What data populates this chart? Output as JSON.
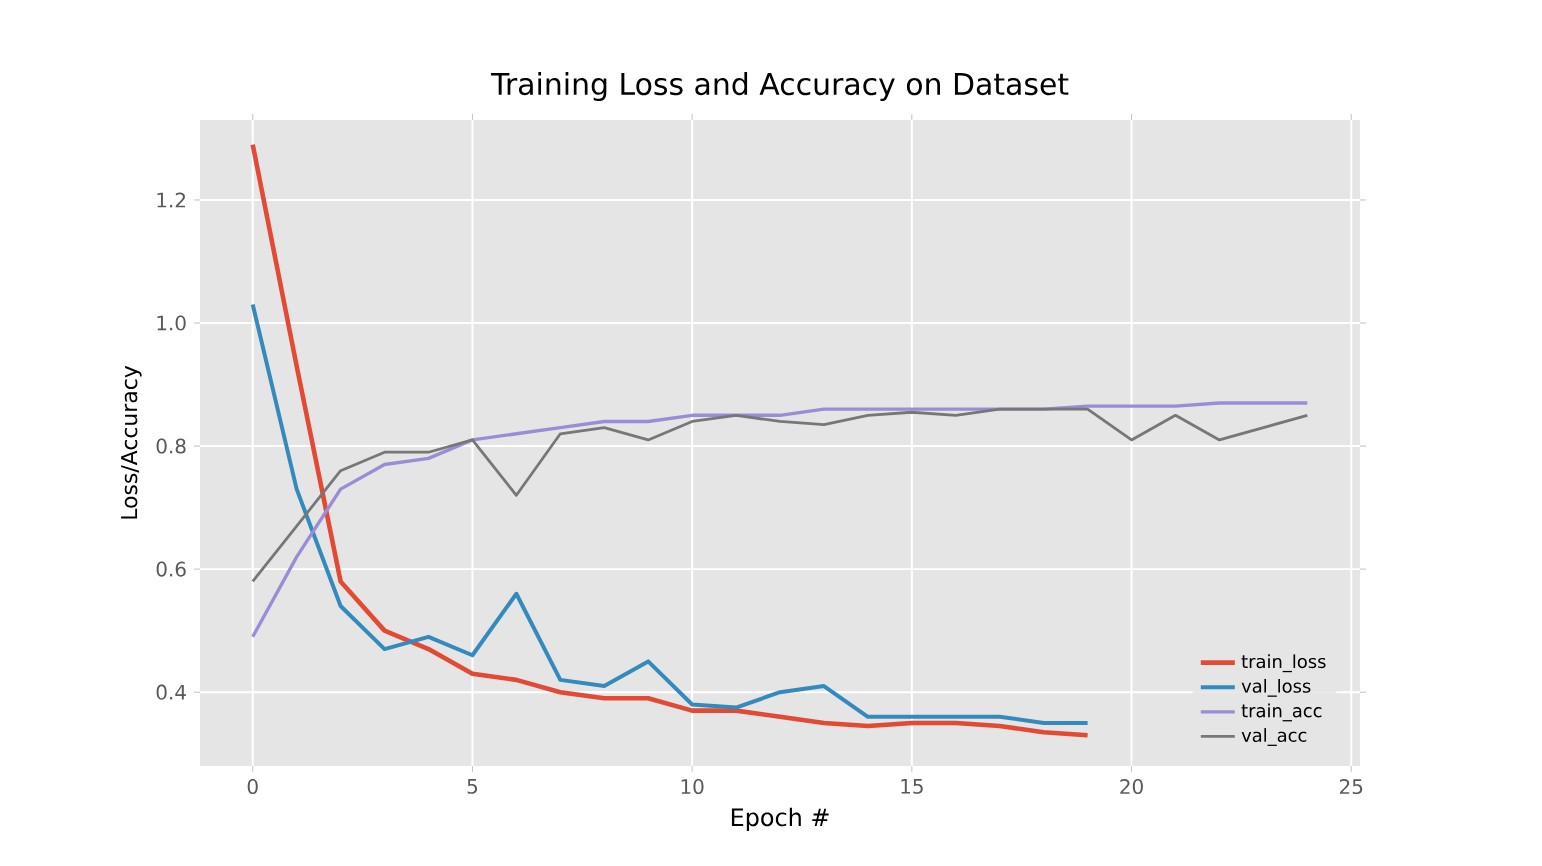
{
  "chart_data": {
    "type": "line",
    "title": "Training Loss and Accuracy on Dataset",
    "xlabel": "Epoch #",
    "ylabel": "Loss/Accuracy",
    "x": [
      0,
      1,
      2,
      3,
      4,
      5,
      6,
      7,
      8,
      9,
      10,
      11,
      12,
      13,
      14,
      15,
      16,
      17,
      18,
      19,
      20,
      21,
      22,
      23,
      24
    ],
    "series": [
      {
        "name": "train_loss",
        "color": "#e24a33",
        "values": [
          1.29,
          0.93,
          0.58,
          0.5,
          0.47,
          0.43,
          0.42,
          0.4,
          0.39,
          0.39,
          0.37,
          0.37,
          0.36,
          0.35,
          0.345,
          0.35,
          0.35,
          0.345,
          0.335,
          0.33,
          null,
          null,
          null,
          null,
          null
        ]
      },
      {
        "name": "val_loss",
        "color": "#348abd",
        "values": [
          1.03,
          0.73,
          0.54,
          0.47,
          0.49,
          0.46,
          0.56,
          0.42,
          0.41,
          0.45,
          0.38,
          0.375,
          0.4,
          0.41,
          0.36,
          0.36,
          0.36,
          0.36,
          0.35,
          0.35,
          null,
          null,
          null,
          null,
          null
        ]
      },
      {
        "name": "train_acc",
        "color": "#988ed5",
        "values": [
          0.49,
          0.62,
          0.73,
          0.77,
          0.78,
          0.81,
          0.82,
          0.83,
          0.84,
          0.84,
          0.85,
          0.85,
          0.85,
          0.86,
          0.86,
          0.86,
          0.86,
          0.86,
          0.86,
          0.865,
          0.865,
          0.865,
          0.87,
          0.87,
          0.87
        ]
      },
      {
        "name": "val_acc",
        "color": "#777777",
        "values": [
          0.58,
          0.67,
          0.76,
          0.79,
          0.79,
          0.81,
          0.72,
          0.82,
          0.83,
          0.81,
          0.84,
          0.85,
          0.84,
          0.835,
          0.85,
          0.855,
          0.85,
          0.86,
          0.86,
          0.86,
          0.81,
          0.85,
          0.81,
          0.83,
          0.85
        ]
      }
    ],
    "xlim": [
      -1.2,
      25.2
    ],
    "xticks": [
      0,
      5,
      10,
      15,
      20,
      25
    ],
    "ylim": [
      0.28,
      1.33
    ],
    "yticks": [
      0.4,
      0.6,
      0.8,
      {
        "value": 1,
        "label": "1.0"
      },
      1.2
    ],
    "grid": true,
    "legend": "bottom right",
    "marker": "none",
    "line_style": "solid"
  }
}
